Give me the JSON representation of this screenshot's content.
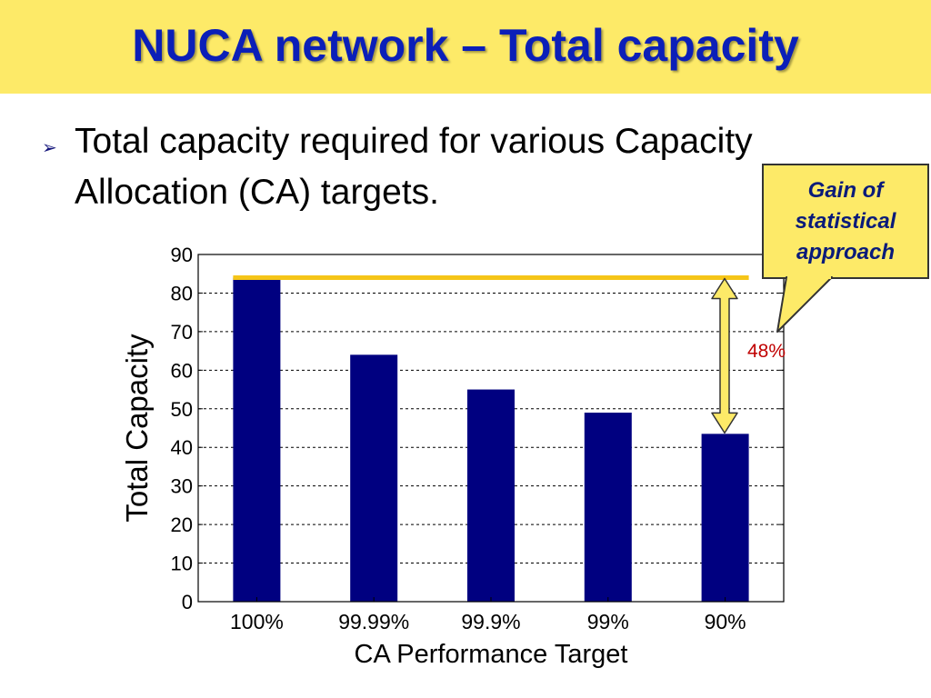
{
  "slide": {
    "title": "NUCA network – Total capacity",
    "bullet_icon": "arrow-bullet-icon",
    "bullet_text": "Total capacity required for various Capacity Allocation (CA) targets.",
    "callout_text": "Gain of statistical approach",
    "gain_label": "48%",
    "colors": {
      "title_bar": "#fdea68",
      "title_text": "#0b1fb8",
      "bar": "#000080",
      "reference_line": "#f5c518",
      "callout": "#fdea68",
      "gain_label": "#c00000"
    }
  },
  "chart_data": {
    "type": "bar",
    "categories": [
      "100%",
      "99.99%",
      "99.9%",
      "99%",
      "90%"
    ],
    "values": [
      84,
      64,
      55,
      49,
      43.5
    ],
    "xlabel": "CA Performance Target",
    "ylabel": "Total Capacity",
    "ylim": [
      0,
      90
    ],
    "yticks": [
      0,
      10,
      20,
      30,
      40,
      50,
      60,
      70,
      80,
      90
    ],
    "grid": true,
    "reference_line": 84,
    "gain_arrow": {
      "from": 84,
      "to": 43.5
    }
  }
}
